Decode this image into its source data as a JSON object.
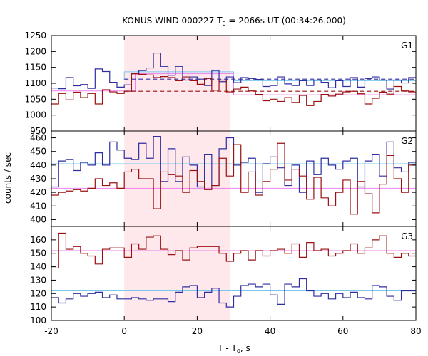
{
  "chart_data": {
    "type": "line",
    "title": {
      "prefix": "KONUS-WIND 000227 T",
      "sub": "0",
      "suffix": " = 2066s UT (00:34:26.000)"
    },
    "xlabel": {
      "main": "T - T",
      "sub": "0",
      "suffix": ", s"
    },
    "ylabel": "counts / sec",
    "xlim": [
      -20,
      80
    ],
    "xticks": [
      -20,
      0,
      20,
      40,
      60,
      80
    ],
    "shaded_interval": [
      0,
      29
    ],
    "shade_color": "#ffe8ec",
    "colors": {
      "blue": "#2e2ea0",
      "red": "#9b1010",
      "cyan": "#78c8ee",
      "pink": "#ee82ee"
    },
    "panels": [
      {
        "label": "G1",
        "ylim": [
          950,
          1250
        ],
        "yticks": [
          950,
          1000,
          1050,
          1100,
          1150,
          1200,
          1250
        ],
        "step_edges": [
          -20,
          -18,
          -16,
          -14,
          -12,
          -10,
          -8,
          -6,
          -4,
          -2,
          0,
          2,
          4,
          6,
          8,
          10,
          12,
          14,
          16,
          18,
          20,
          22,
          24,
          26,
          28,
          30,
          32,
          34,
          36,
          38,
          40,
          42,
          44,
          46,
          48,
          50,
          52,
          54,
          56,
          58,
          60,
          62,
          64,
          66,
          68,
          70,
          72,
          74,
          76,
          78,
          80
        ],
        "series": [
          {
            "color": "blue",
            "values": [
              1085,
              1083,
              1118,
              1092,
              1096,
              1084,
              1145,
              1137,
              1103,
              1088,
              1095,
              1130,
              1140,
              1148,
              1195,
              1153,
              1125,
              1153,
              1110,
              1120,
              1113,
              1093,
              1140,
              1105,
              1120,
              1102,
              1118,
              1115,
              1112,
              1090,
              1093,
              1120,
              1098,
              1093,
              1108,
              1093,
              1110,
              1103,
              1086,
              1108,
              1090,
              1118,
              1088,
              1115,
              1120,
              1110,
              1082,
              1110,
              1101,
              1118
            ]
          },
          {
            "color": "red",
            "values": [
              1035,
              1068,
              1048,
              1072,
              1055,
              1068,
              1035,
              1080,
              1073,
              1068,
              1075,
              1130,
              1128,
              1126,
              1118,
              1121,
              1118,
              1108,
              1120,
              1108,
              1097,
              1115,
              1078,
              1110,
              1073,
              1082,
              1088,
              1076,
              1065,
              1045,
              1050,
              1043,
              1055,
              1040,
              1062,
              1030,
              1043,
              1065,
              1060,
              1066,
              1073,
              1075,
              1067,
              1035,
              1053,
              1072,
              1066,
              1090,
              1076,
              1073
            ]
          }
        ],
        "levels": [
          {
            "color": "cyan",
            "segments": [
              [
                -20,
                0,
                1110
              ],
              [
                0,
                30,
                1136
              ],
              [
                30,
                80,
                1108
              ]
            ]
          },
          {
            "color": "pink",
            "segments": [
              [
                -20,
                0,
                1076
              ],
              [
                0,
                3,
                1076
              ],
              [
                3,
                30,
                1130
              ],
              [
                30,
                80,
                1064
              ]
            ]
          }
        ],
        "dashed_fits": [
          {
            "color": "blue",
            "from": 0,
            "to": 80,
            "y": 1113
          },
          {
            "color": "red",
            "from": 0,
            "to": 80,
            "y": 1075
          }
        ]
      },
      {
        "label": "G2",
        "ylim": [
          395,
          465
        ],
        "yticks": [
          400,
          410,
          420,
          430,
          440,
          450,
          460
        ],
        "step_edges": [
          -20,
          -18,
          -16,
          -14,
          -12,
          -10,
          -8,
          -6,
          -4,
          -2,
          0,
          2,
          4,
          6,
          8,
          10,
          12,
          14,
          16,
          18,
          20,
          22,
          24,
          26,
          28,
          30,
          32,
          34,
          36,
          38,
          40,
          42,
          44,
          46,
          48,
          50,
          52,
          54,
          56,
          58,
          60,
          62,
          64,
          66,
          68,
          70,
          72,
          74,
          76,
          78,
          80
        ],
        "series": [
          {
            "color": "blue",
            "values": [
              424,
              443,
              444,
              436,
              442,
              440,
              449,
              440,
              457,
              451,
              445,
              444,
              456,
              445,
              461,
              428,
              452,
              428,
              446,
              440,
              424,
              448,
              425,
              452,
              460,
              440,
              442,
              445,
              420,
              441,
              446,
              438,
              425,
              440,
              420,
              443,
              433,
              445,
              440,
              437,
              443,
              445,
              424,
              443,
              448,
              432,
              457,
              438,
              435,
              442
            ]
          },
          {
            "color": "red",
            "values": [
              418,
              420,
              421,
              422,
              421,
              423,
              430,
              425,
              427,
              423,
              435,
              437,
              430,
              430,
              408,
              435,
              433,
              432,
              420,
              436,
              428,
              422,
              425,
              445,
              432,
              455,
              420,
              435,
              418,
              428,
              437,
              456,
              429,
              437,
              432,
              415,
              431,
              416,
              410,
              420,
              429,
              404,
              428,
              419,
              405,
              426,
              447,
              430,
              420,
              440
            ]
          }
        ],
        "levels": [
          {
            "color": "cyan",
            "segments": [
              [
                -20,
                80,
                441
              ]
            ]
          },
          {
            "color": "pink",
            "segments": [
              [
                -20,
                80,
                423
              ]
            ]
          }
        ],
        "dashed_fits": []
      },
      {
        "label": "G3",
        "ylim": [
          100,
          170
        ],
        "yticks": [
          100,
          110,
          120,
          130,
          140,
          150,
          160
        ],
        "step_edges": [
          -20,
          -18,
          -16,
          -14,
          -12,
          -10,
          -8,
          -6,
          -4,
          -2,
          0,
          2,
          4,
          6,
          8,
          10,
          12,
          14,
          16,
          18,
          20,
          22,
          24,
          26,
          28,
          30,
          32,
          34,
          36,
          38,
          40,
          42,
          44,
          46,
          48,
          50,
          52,
          54,
          56,
          58,
          60,
          62,
          64,
          66,
          68,
          70,
          72,
          74,
          76,
          78,
          80
        ],
        "series": [
          {
            "color": "red",
            "values": [
              139,
              165,
              153,
              155,
              150,
              148,
              142,
              153,
              154,
              154,
              147,
              157,
              153,
              162,
              163,
              153,
              149,
              152,
              145,
              154,
              155,
              155,
              155,
              150,
              144,
              150,
              152,
              145,
              152,
              148,
              152,
              153,
              150,
              157,
              147,
              158,
              152,
              153,
              148,
              150,
              152,
              157,
              150,
              154,
              160,
              163,
              150,
              147,
              150,
              148
            ]
          },
          {
            "color": "blue",
            "values": [
              117,
              113,
              116,
              120,
              118,
              120,
              121,
              117,
              119,
              116,
              116,
              117,
              116,
              115,
              116,
              116,
              114,
              121,
              125,
              126,
              117,
              121,
              124,
              113,
              110,
              118,
              126,
              127,
              125,
              127,
              119,
              112,
              127,
              125,
              131,
              122,
              118,
              120,
              116,
              120,
              117,
              121,
              117,
              116,
              126,
              125,
              118,
              115,
              122,
              122
            ]
          }
        ],
        "levels": [
          {
            "color": "cyan",
            "segments": [
              [
                -20,
                80,
                122
              ]
            ]
          },
          {
            "color": "pink",
            "segments": [
              [
                -20,
                80,
                152
              ]
            ]
          }
        ],
        "dashed_fits": []
      }
    ]
  }
}
